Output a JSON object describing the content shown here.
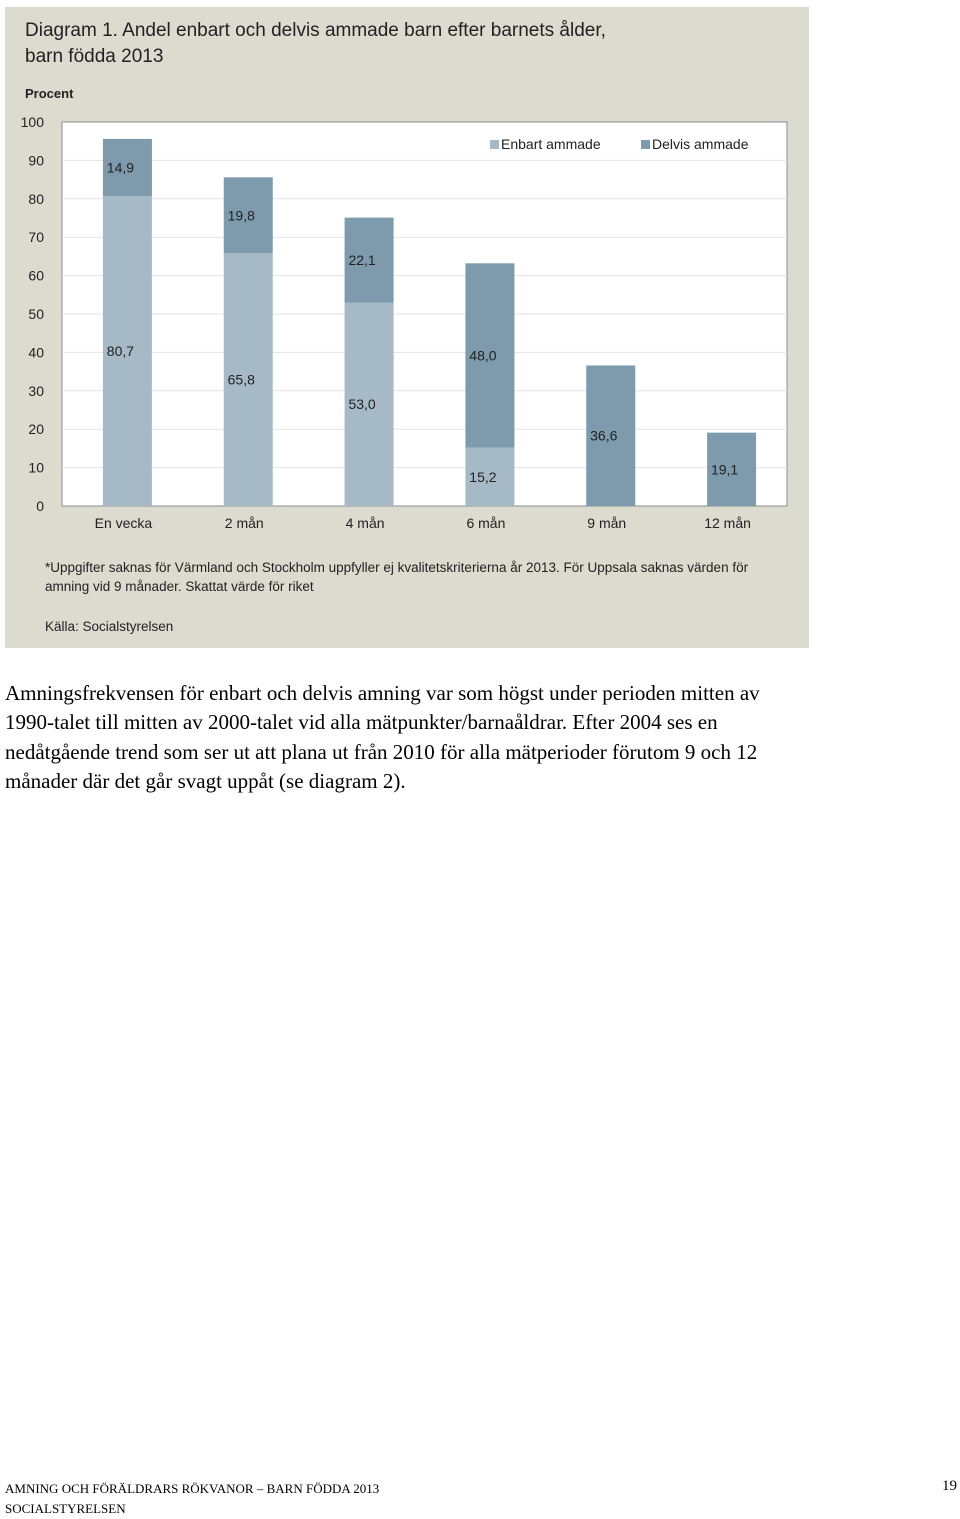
{
  "figure": {
    "footnote": "*Uppgifter saknas för Värmland och Stockholm uppfyller ej kvalitetskriterierna år 2013. För Uppsala saknas värden för amning vid 9 månader. Skattat värde för riket",
    "source": "Källa: Socialstyrelsen"
  },
  "chart_data": {
    "type": "bar",
    "stacked": true,
    "title": "Diagram 1. Andel enbart och delvis ammade barn efter barnets ålder, barn födda 2013",
    "ylabel": "Procent",
    "ylim": [
      0,
      100
    ],
    "yticks": [
      0,
      10,
      20,
      30,
      40,
      50,
      60,
      70,
      80,
      90,
      100
    ],
    "legend_position": "top-right",
    "categories": [
      "En vecka",
      "2 mån",
      "4 mån",
      "6 mån",
      "9 mån",
      "12 mån"
    ],
    "series": [
      {
        "name": "Enbart ammade",
        "color": "#a5b9c7",
        "values": [
          80.7,
          65.8,
          53.0,
          15.2,
          null,
          null
        ],
        "labels": [
          "80,7",
          "65,8",
          "53,0",
          "15,2",
          "",
          ""
        ]
      },
      {
        "name": "Delvis ammade",
        "color": "#7e9aad",
        "values": [
          14.9,
          19.8,
          22.1,
          48.0,
          36.6,
          19.1
        ],
        "labels": [
          "14,9",
          "19,8",
          "22,1",
          "48,0",
          "36,6",
          "19,1"
        ]
      }
    ]
  },
  "body": {
    "paragraph": "Amningsfrekvensen för enbart och delvis amning var som högst under perioden mitten av 1990-talet till mitten av 2000-talet vid alla mätpunkter/barnaåldrar. Efter 2004 ses en nedåtgående trend som ser ut att plana ut från 2010 för alla mätperioder förutom 9 och 12 månader där det går svagt uppåt (se diagram 2)."
  },
  "footer": {
    "line1": "AMNING OCH FÖRÄLDRARS RÖKVANOR – BARN FÖDDA 2013",
    "line2": "SOCIALSTYRELSEN",
    "page": "19"
  }
}
